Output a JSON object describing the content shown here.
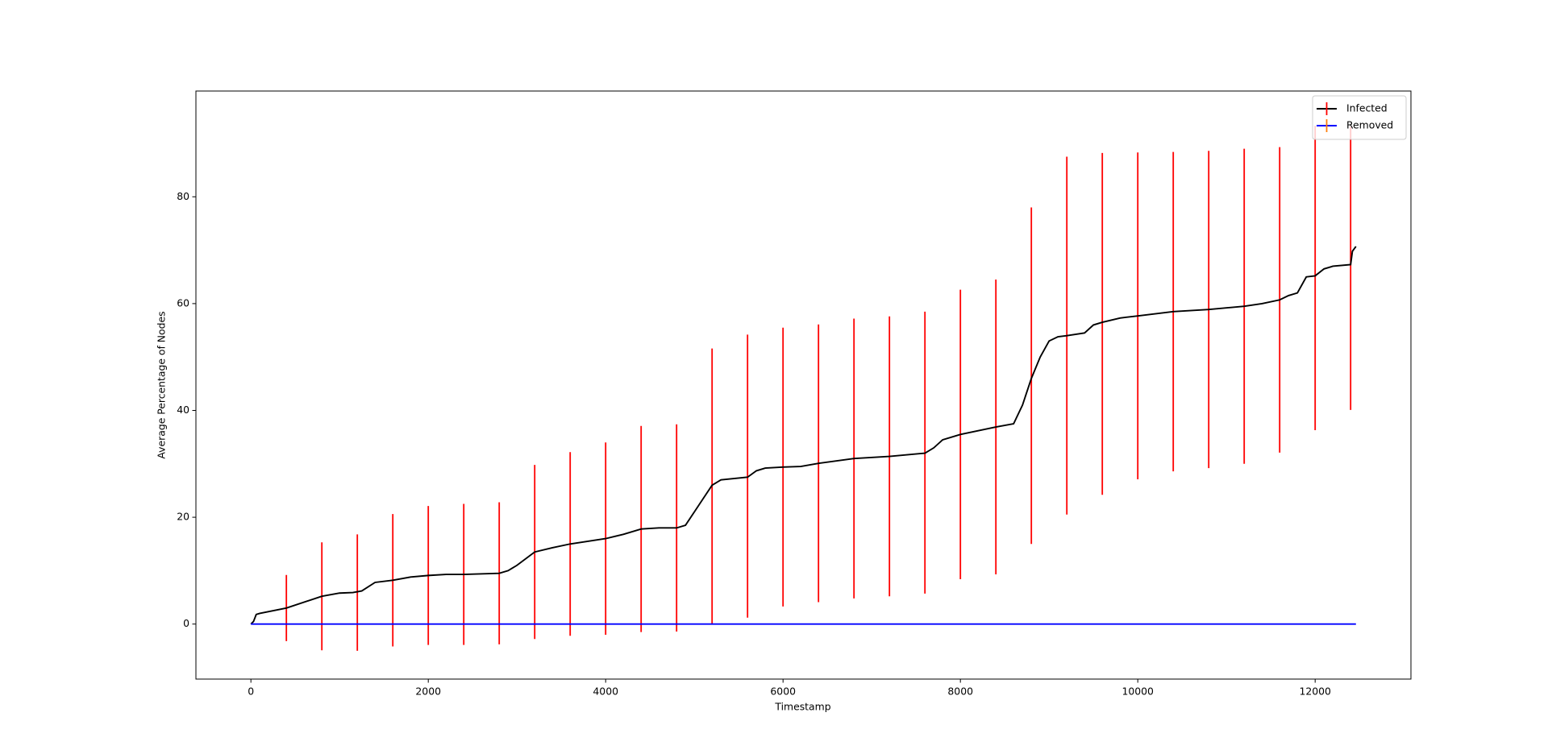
{
  "chart_data": {
    "type": "line",
    "xlabel": "Timestamp",
    "ylabel": "Average Percentage of Nodes",
    "xlim": [
      -620,
      13080
    ],
    "xticks": [
      0,
      2000,
      4000,
      6000,
      8000,
      10000,
      12000
    ],
    "ylim": [
      -10.3,
      99.8
    ],
    "yticks": [
      0,
      20,
      40,
      60,
      80
    ],
    "legend": "upper right",
    "series": [
      {
        "name": "Infected",
        "color": "#000000",
        "errorbar_color": "#ff0000",
        "x": [
          0,
          30,
          60,
          100,
          400,
          800,
          1000,
          1150,
          1250,
          1400,
          1600,
          1800,
          2000,
          2200,
          2400,
          2800,
          2900,
          3000,
          3200,
          3400,
          3600,
          4000,
          4200,
          4400,
          4600,
          4800,
          4900,
          5000,
          5100,
          5200,
          5300,
          5600,
          5700,
          5800,
          6000,
          6200,
          6400,
          6800,
          7200,
          7600,
          7700,
          7800,
          8000,
          8200,
          8400,
          8600,
          8700,
          8800,
          8900,
          9000,
          9100,
          9200,
          9400,
          9500,
          9600,
          9800,
          10000,
          10400,
          10800,
          11200,
          11400,
          11600,
          11700,
          11800,
          11900,
          12000,
          12100,
          12200,
          12400,
          12420,
          12460
        ],
        "values": [
          0,
          0.5,
          1.8,
          2.0,
          3.0,
          5.2,
          5.8,
          5.9,
          6.2,
          7.8,
          8.2,
          8.8,
          9.1,
          9.3,
          9.3,
          9.5,
          10.0,
          11.0,
          13.5,
          14.3,
          15.0,
          16.0,
          16.8,
          17.8,
          18.0,
          18.0,
          18.5,
          21.0,
          23.5,
          26.0,
          27.0,
          27.5,
          28.7,
          29.2,
          29.4,
          29.5,
          30.1,
          31.0,
          31.4,
          32.0,
          33.0,
          34.5,
          35.5,
          36.2,
          36.9,
          37.5,
          41.0,
          46.0,
          50.0,
          53.0,
          53.8,
          54.0,
          54.5,
          56.0,
          56.5,
          57.3,
          57.7,
          58.5,
          58.9,
          59.5,
          60.0,
          60.7,
          61.5,
          62.0,
          65.0,
          65.2,
          66.5,
          67.0,
          67.3,
          69.8,
          70.7
        ],
        "errorbars": {
          "x": [
            400,
            800,
            1200,
            1600,
            2000,
            2400,
            2800,
            3200,
            3600,
            4000,
            4400,
            4800,
            5200,
            5600,
            6000,
            6400,
            6800,
            7200,
            7600,
            8000,
            8400,
            8800,
            9200,
            9600,
            10000,
            10400,
            10800,
            11200,
            11600,
            12000,
            12400
          ],
          "values": [
            3.0,
            5.2,
            5.9,
            8.2,
            9.1,
            9.3,
            9.5,
            13.5,
            15.0,
            16.0,
            17.8,
            18.0,
            25.8,
            27.7,
            29.4,
            30.1,
            31.0,
            31.4,
            32.1,
            35.5,
            36.9,
            46.5,
            54.0,
            56.2,
            57.7,
            58.5,
            58.9,
            59.5,
            60.7,
            64.8,
            66.6
          ],
          "errors": [
            6.2,
            10.1,
            10.9,
            12.4,
            13.0,
            13.2,
            13.3,
            16.3,
            17.2,
            18.0,
            19.3,
            19.4,
            25.8,
            26.5,
            26.1,
            26.0,
            26.2,
            26.2,
            26.4,
            27.1,
            27.6,
            31.5,
            33.5,
            32.0,
            30.6,
            29.9,
            29.7,
            29.5,
            28.6,
            28.5,
            26.5
          ]
        }
      },
      {
        "name": "Removed",
        "color": "#0000ff",
        "errorbar_color": "#ff7f0e",
        "x": [
          0,
          12460
        ],
        "values": [
          0,
          0
        ]
      }
    ]
  }
}
